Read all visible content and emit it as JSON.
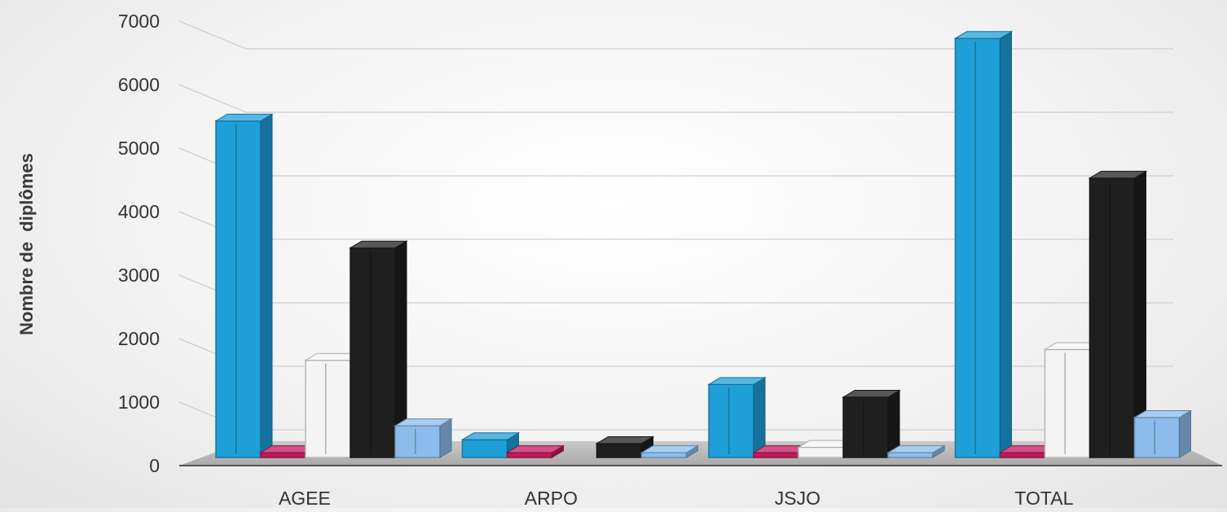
{
  "chart_data": {
    "type": "bar",
    "title": "",
    "xlabel": "",
    "ylabel": "Nombre de  diplômes",
    "ylim": [
      0,
      7000
    ],
    "yticks": [
      0,
      1000,
      2000,
      3000,
      4000,
      5000,
      6000,
      7000
    ],
    "grid": true,
    "legend": "none",
    "categories": [
      "AGEE",
      "ARPO",
      "JSJO",
      "TOTAL"
    ],
    "series": [
      {
        "color": "#1e9fd8",
        "values": [
          5300,
          280,
          1150,
          6600
        ]
      },
      {
        "color": "#c2185b",
        "values": [
          15,
          15,
          15,
          15
        ]
      },
      {
        "color": "#f4f4f4",
        "values": [
          1530,
          0,
          160,
          1700
        ]
      },
      {
        "color": "#1f1f1f",
        "values": [
          3300,
          220,
          950,
          4400
        ]
      },
      {
        "color": "#8cbcec",
        "values": [
          500,
          40,
          40,
          630
        ]
      }
    ]
  }
}
